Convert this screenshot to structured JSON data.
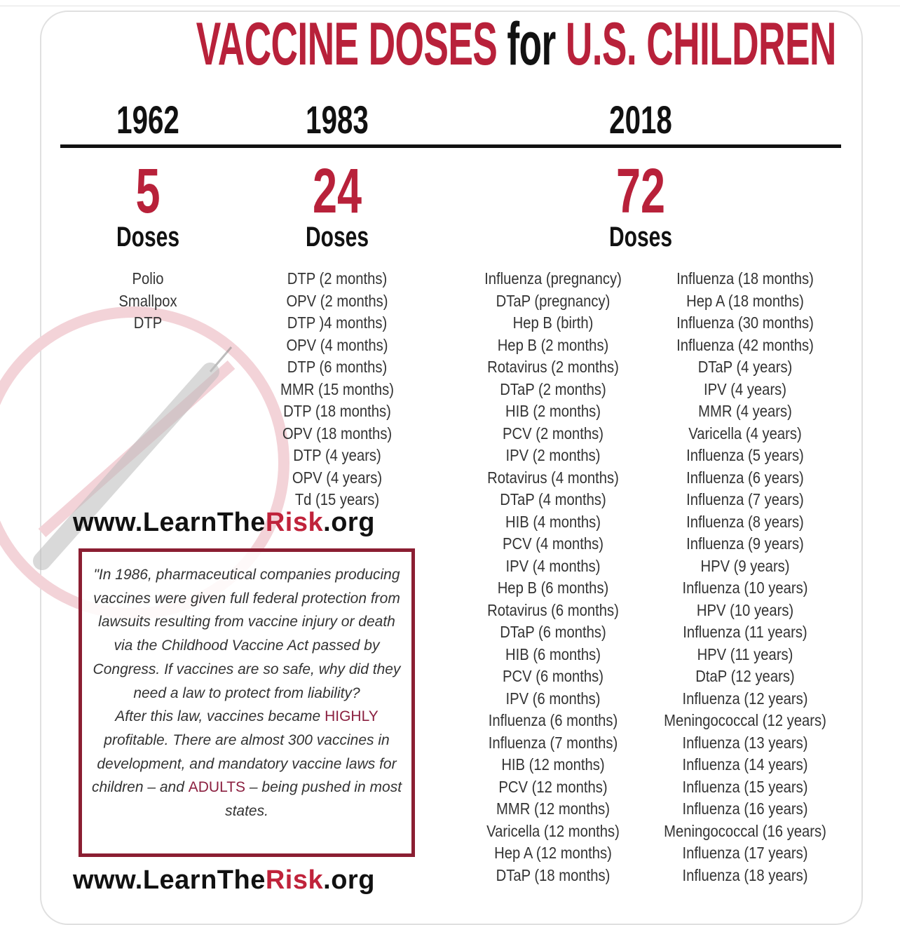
{
  "title": {
    "part1": "VACCINE DOSES",
    "part2": "for",
    "part3": "U.S. CHILDREN"
  },
  "colors": {
    "accent_red": "#b8213a",
    "box_border": "#8b1e32",
    "text": "#222222"
  },
  "columns": [
    {
      "year": "1962",
      "count": "5",
      "doses_label": "Doses",
      "items": [
        "Polio",
        "Smallpox",
        "DTP"
      ]
    },
    {
      "year": "1983",
      "count": "24",
      "doses_label": "Doses",
      "items": [
        "DTP (2 months)",
        "OPV (2 months)",
        "DTP )4 months)",
        "OPV (4 months)",
        "DTP (6 months)",
        "MMR (15 months)",
        "DTP (18 months)",
        "OPV (18 months)",
        "DTP (4 years)",
        "OPV (4 years)",
        "Td (15 years)"
      ]
    },
    {
      "year": "2018",
      "count": "72",
      "doses_label": "Doses",
      "items_a": [
        "Influenza (pregnancy)",
        "DTaP (pregnancy)",
        "Hep B (birth)",
        "Hep B (2 months)",
        "Rotavirus (2 months)",
        "DTaP (2 months)",
        "HIB (2 months)",
        "PCV (2 months)",
        "IPV (2 months)",
        "Rotavirus (4 months)",
        "DTaP (4 months)",
        "HIB (4 months)",
        "PCV (4 months)",
        "IPV (4 months)",
        "Hep B (6 months)",
        "Rotavirus (6 months)",
        "DTaP (6 months)",
        "HIB (6 months)",
        "PCV (6 months)",
        "IPV (6 months)",
        "Influenza (6 months)",
        "Influenza (7 months)",
        "HIB (12 months)",
        "PCV (12 months)",
        "MMR (12 months)",
        "Varicella (12 months)",
        "Hep A (12 months)",
        "DTaP (18 months)"
      ],
      "items_b": [
        "Influenza (18 months)",
        "Hep A (18 months)",
        "Influenza (30 months)",
        "Influenza (42 months)",
        "DTaP (4 years)",
        "IPV (4 years)",
        "MMR (4 years)",
        "Varicella (4 years)",
        "Influenza (5 years)",
        "Influenza (6 years)",
        "Influenza (7 years)",
        "Influenza (8 years)",
        "Influenza (9 years)",
        "HPV (9 years)",
        "Influenza (10 years)",
        "HPV (10 years)",
        "Influenza (11 years)",
        "HPV (11 years)",
        "DtaP (12 years)",
        "Influenza (12 years)",
        "Meningococcal (12 years)",
        "Influenza (13 years)",
        "Influenza (14 years)",
        "Influenza (15 years)",
        "Influenza (16 years)",
        "Meningococcal (16 years)",
        "Influenza (17 years)",
        "Influenza (18 years)"
      ]
    }
  ],
  "url": {
    "prefix": "www.LearnThe",
    "highlight": "Risk",
    "suffix": ".org"
  },
  "note": {
    "part1": "\"In 1986, pharmaceutical companies producing vaccines were given full federal protection from lawsuits resulting from vaccine injury or death via the Childhood Vaccine Act passed by Congress. If vaccines are so safe, why did they need a law to protect from liability?",
    "part2": "After this law, vaccines became",
    "highlight1": "HIGHLY",
    "part3": "profitable. There are almost 300 vaccines in development, and mandatory vaccine laws for children –  and",
    "highlight2": "ADULTS",
    "part4": "– being pushed in most states."
  }
}
